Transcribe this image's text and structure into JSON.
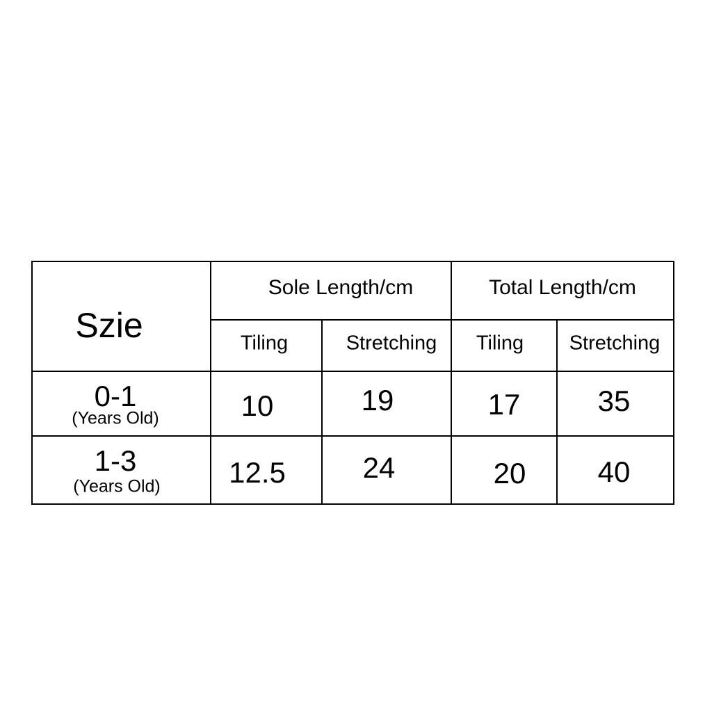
{
  "table": {
    "corner_label": "Szie",
    "group_headers": [
      "Sole Length/cm",
      "Total Length/cm"
    ],
    "sub_headers": [
      "Tiling",
      "Stretching",
      "Tiling",
      "Stretching"
    ],
    "rows": [
      {
        "age": "0-1",
        "age_note": "(Years Old)",
        "values": [
          "10",
          "19",
          "17",
          "35"
        ]
      },
      {
        "age": "1-3",
        "age_note": "(Years Old)",
        "values": [
          "12.5",
          "24",
          "20",
          "40"
        ]
      }
    ]
  }
}
